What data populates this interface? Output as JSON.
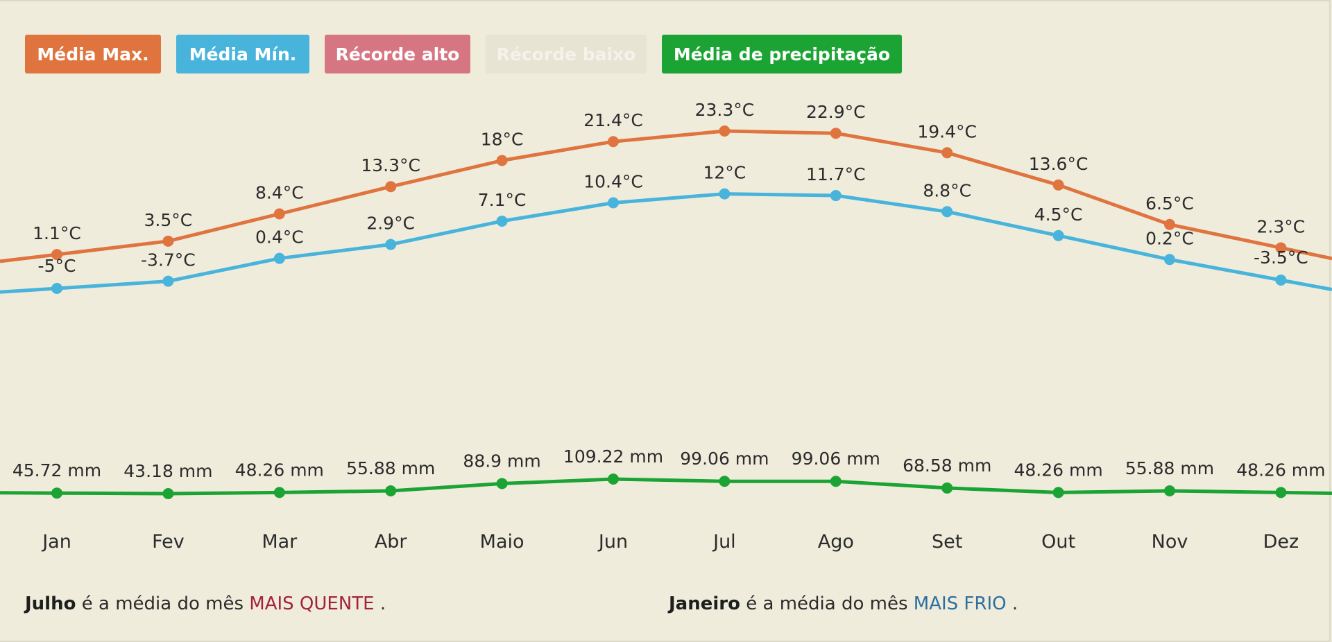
{
  "legend": [
    {
      "label": "Média Max.",
      "color": "#e0743f"
    },
    {
      "label": "Média Mín.",
      "color": "#48b4dc"
    },
    {
      "label": "Récorde alto",
      "color": "#d77683"
    },
    {
      "label": "Récorde baixo",
      "color": "#e8e4d4"
    },
    {
      "label": "Média de precipitação",
      "color": "#1ba334"
    }
  ],
  "chart_data": {
    "type": "line",
    "categories": [
      "Jan",
      "Fev",
      "Mar",
      "Abr",
      "Maio",
      "Jun",
      "Jul",
      "Ago",
      "Set",
      "Out",
      "Nov",
      "Dez"
    ],
    "series": [
      {
        "name": "Média Max.",
        "unit": "°C",
        "color": "#e0743f",
        "values": [
          1.1,
          3.5,
          8.4,
          13.3,
          18,
          21.4,
          23.3,
          22.9,
          19.4,
          13.6,
          6.5,
          2.3
        ],
        "labels": [
          "1.1°C",
          "3.5°C",
          "8.4°C",
          "13.3°C",
          "18°C",
          "21.4°C",
          "23.3°C",
          "22.9°C",
          "19.4°C",
          "13.6°C",
          "6.5°C",
          "2.3°C"
        ]
      },
      {
        "name": "Média Mín.",
        "unit": "°C",
        "color": "#48b4dc",
        "values": [
          -5,
          -3.7,
          0.4,
          2.9,
          7.1,
          10.4,
          12,
          11.7,
          8.8,
          4.5,
          0.2,
          -3.5
        ],
        "labels": [
          "-5°C",
          "-3.7°C",
          "0.4°C",
          "2.9°C",
          "7.1°C",
          "10.4°C",
          "12°C",
          "11.7°C",
          "8.8°C",
          "4.5°C",
          "0.2°C",
          "-3.5°C"
        ]
      },
      {
        "name": "Média de precipitação",
        "unit": "mm",
        "color": "#1ba334",
        "values": [
          45.72,
          43.18,
          48.26,
          55.88,
          88.9,
          109.22,
          99.06,
          99.06,
          68.58,
          48.26,
          55.88,
          48.26
        ],
        "labels": [
          "45.72 mm",
          "43.18 mm",
          "48.26 mm",
          "55.88 mm",
          "88.9 mm",
          "109.22 mm",
          "99.06 mm",
          "99.06 mm",
          "68.58 mm",
          "48.26 mm",
          "55.88 mm",
          "48.26 mm"
        ]
      }
    ]
  },
  "footer": {
    "hot_month": "Julho",
    "hot_text": "é a média do mês",
    "hot_tag": "MAIS QUENTE",
    "cold_month": "Janeiro",
    "cold_text": "é a média do mês",
    "cold_tag": "MAIS FRIO",
    "period": "."
  }
}
